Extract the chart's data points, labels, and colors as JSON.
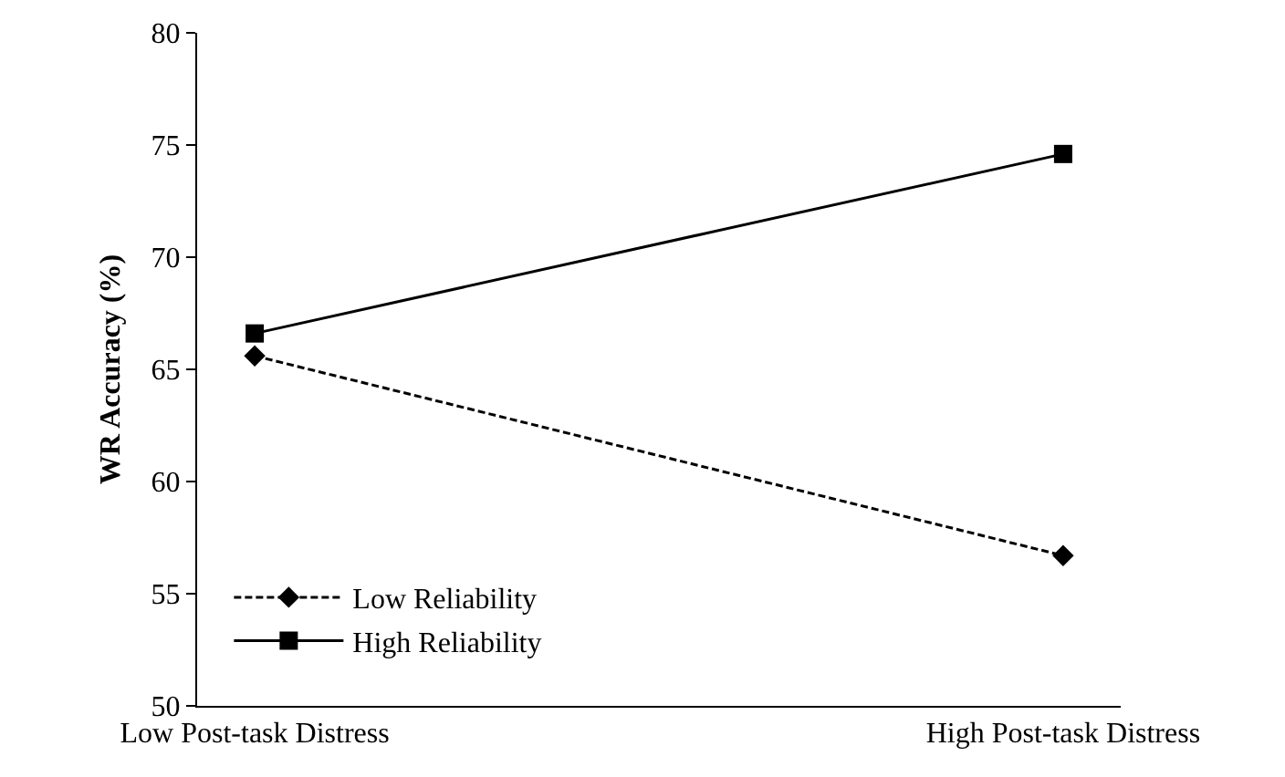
{
  "chart_data": {
    "type": "line",
    "ylabel": "WR Accuracy (%)",
    "categories": [
      "Low Post-task Distress",
      "High Post-task Distress"
    ],
    "series": [
      {
        "name": "Low Reliability",
        "color": "#000000",
        "values": [
          65.6,
          56.7
        ],
        "marker": "diamond",
        "line_style": "dashed"
      },
      {
        "name": "High Reliability",
        "color": "#000000",
        "values": [
          66.6,
          74.6
        ],
        "marker": "square",
        "line_style": "solid"
      }
    ],
    "ylim": [
      50,
      80
    ],
    "yticks": [
      50,
      55,
      60,
      65,
      70,
      75,
      80
    ],
    "grid": false,
    "legend": "bottom left"
  }
}
